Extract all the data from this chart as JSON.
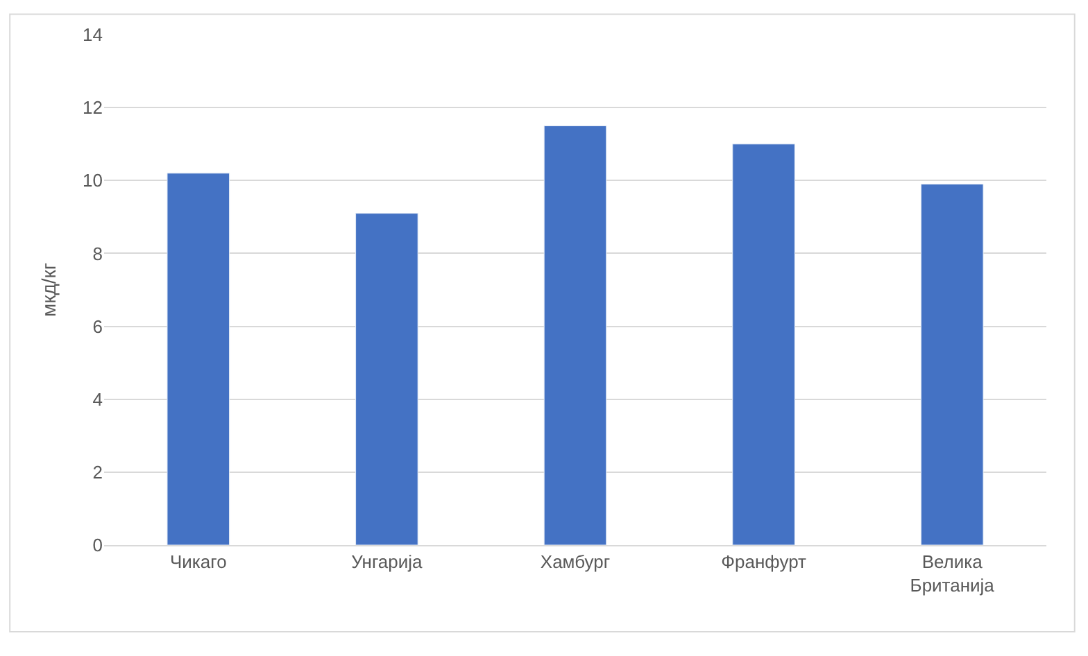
{
  "chart_data": {
    "type": "bar",
    "ylabel": "мкд/кг",
    "categories": [
      "Чикаго",
      "Унгарија",
      "Хамбург",
      "Франфурт",
      "Велика Британија"
    ],
    "values": [
      10.2,
      9.1,
      11.5,
      11.0,
      9.9
    ],
    "color": "#4472c4",
    "ylim": [
      0,
      14
    ],
    "yticks": [
      0,
      2,
      4,
      6,
      8,
      10,
      12,
      14
    ],
    "grid": "y"
  }
}
